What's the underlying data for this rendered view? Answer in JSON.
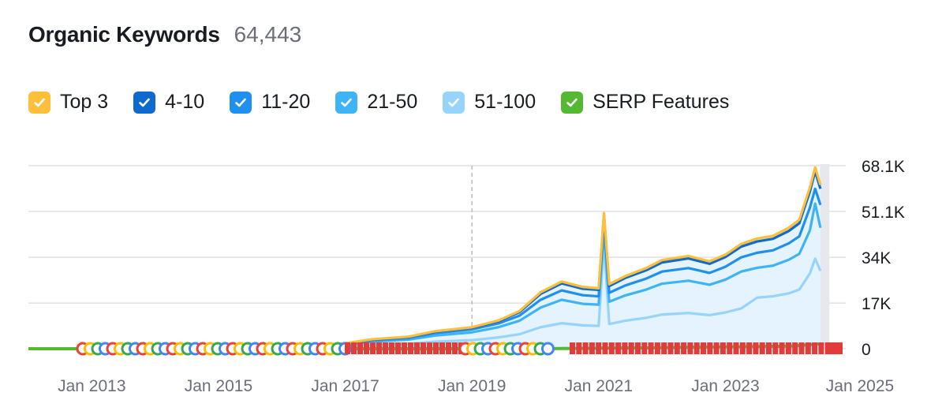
{
  "header": {
    "title": "Organic Keywords",
    "total": "64,443"
  },
  "legend": [
    {
      "label": "Top 3",
      "color": "#ffbf3a"
    },
    {
      "label": "4-10",
      "color": "#0f6ad0"
    },
    {
      "label": "11-20",
      "color": "#1f8ff0"
    },
    {
      "label": "21-50",
      "color": "#3db4f6"
    },
    {
      "label": "51-100",
      "color": "#96d4fb"
    },
    {
      "label": "SERP Features",
      "color": "#55b833"
    }
  ],
  "icons": {
    "check": "check-icon",
    "serp_feature": "google-g-icon",
    "serp_flag": "flag-icon"
  },
  "chart_data": {
    "type": "area",
    "title": "Organic Keywords",
    "x_tick_labels": [
      "Jan 2013",
      "Jan 2015",
      "Jan 2017",
      "Jan 2019",
      "Jan 2021",
      "Jan 2023",
      "Jan 2025"
    ],
    "y_tick_labels": [
      "68.1K",
      "51.1K",
      "34K",
      "17K",
      "0"
    ],
    "ylim": [
      0,
      68100
    ],
    "xlim": [
      "2012-01",
      "2024-10"
    ],
    "grid": true,
    "marker_line": "2019-01",
    "series": [
      {
        "name": "Top 3",
        "color": "#ffbf3a",
        "x": [
          "2012-01",
          "2013-01",
          "2014-01",
          "2015-01",
          "2016-01",
          "2016-06",
          "2017-01",
          "2017-06",
          "2018-01",
          "2018-06",
          "2019-01",
          "2019-06",
          "2019-10",
          "2020-02",
          "2020-06",
          "2020-10",
          "2021-01",
          "2021-02",
          "2021-03",
          "2021-06",
          "2021-10",
          "2022-01",
          "2022-06",
          "2022-10",
          "2023-01",
          "2023-04",
          "2023-07",
          "2023-10",
          "2024-01",
          "2024-03",
          "2024-05",
          "2024-06",
          "2024-07"
        ],
        "values": [
          0,
          0,
          0,
          0,
          100,
          600,
          2000,
          3500,
          4500,
          6500,
          8000,
          10500,
          14000,
          21000,
          25000,
          23000,
          22500,
          50500,
          24000,
          27000,
          30000,
          33000,
          34500,
          32500,
          35000,
          39000,
          41000,
          42000,
          45000,
          48000,
          60000,
          67500,
          61000
        ]
      },
      {
        "name": "4-10",
        "color": "#0f6ad0",
        "x": [
          "2012-01",
          "2013-01",
          "2014-01",
          "2015-01",
          "2016-01",
          "2016-06",
          "2017-01",
          "2017-06",
          "2018-01",
          "2018-06",
          "2019-01",
          "2019-06",
          "2019-10",
          "2020-02",
          "2020-06",
          "2020-10",
          "2021-01",
          "2021-02",
          "2021-03",
          "2021-06",
          "2021-10",
          "2022-01",
          "2022-06",
          "2022-10",
          "2023-01",
          "2023-04",
          "2023-07",
          "2023-10",
          "2024-01",
          "2024-03",
          "2024-05",
          "2024-06",
          "2024-07"
        ],
        "values": [
          0,
          0,
          0,
          0,
          100,
          600,
          2000,
          3400,
          4400,
          6300,
          7800,
          10200,
          13600,
          20400,
          24300,
          22300,
          21900,
          49800,
          23300,
          26300,
          29200,
          32100,
          33600,
          31600,
          34100,
          38000,
          39900,
          40900,
          43800,
          46700,
          58500,
          66000,
          59500
        ]
      },
      {
        "name": "11-20",
        "color": "#1f8ff0",
        "x": [
          "2012-01",
          "2013-01",
          "2014-01",
          "2015-01",
          "2016-01",
          "2016-06",
          "2017-01",
          "2017-06",
          "2018-01",
          "2018-06",
          "2019-01",
          "2019-06",
          "2019-10",
          "2020-02",
          "2020-06",
          "2020-10",
          "2021-01",
          "2021-02",
          "2021-03",
          "2021-06",
          "2021-10",
          "2022-01",
          "2022-06",
          "2022-10",
          "2023-01",
          "2023-04",
          "2023-07",
          "2023-10",
          "2024-01",
          "2024-03",
          "2024-05",
          "2024-06",
          "2024-07"
        ],
        "values": [
          0,
          0,
          0,
          0,
          80,
          500,
          1800,
          3100,
          4000,
          5800,
          7200,
          9400,
          12300,
          18200,
          21700,
          19900,
          19500,
          47500,
          20800,
          23500,
          26100,
          28700,
          30000,
          28200,
          30500,
          34000,
          35700,
          36600,
          39200,
          41800,
          52500,
          59500,
          53500
        ]
      },
      {
        "name": "21-50",
        "color": "#3db4f6",
        "x": [
          "2012-01",
          "2013-01",
          "2014-01",
          "2015-01",
          "2016-01",
          "2016-06",
          "2017-01",
          "2017-06",
          "2018-01",
          "2018-06",
          "2019-01",
          "2019-06",
          "2019-10",
          "2020-02",
          "2020-06",
          "2020-10",
          "2021-01",
          "2021-02",
          "2021-03",
          "2021-06",
          "2021-10",
          "2022-01",
          "2022-06",
          "2022-10",
          "2023-01",
          "2023-04",
          "2023-07",
          "2023-10",
          "2024-01",
          "2024-03",
          "2024-05",
          "2024-06",
          "2024-07"
        ],
        "values": [
          0,
          0,
          0,
          0,
          60,
          400,
          1500,
          2600,
          3400,
          4900,
          6100,
          8000,
          10400,
          15300,
          18200,
          16700,
          16400,
          44000,
          17500,
          19800,
          22000,
          24200,
          25300,
          23800,
          25700,
          28700,
          30100,
          30900,
          33100,
          35300,
          44000,
          54000,
          45000
        ]
      },
      {
        "name": "51-100",
        "color": "#96d4fb",
        "x": [
          "2012-01",
          "2013-01",
          "2014-01",
          "2015-01",
          "2016-01",
          "2016-06",
          "2017-01",
          "2017-06",
          "2018-01",
          "2018-06",
          "2019-01",
          "2019-06",
          "2019-10",
          "2020-02",
          "2020-06",
          "2020-10",
          "2021-01",
          "2021-02",
          "2021-03",
          "2021-06",
          "2021-10",
          "2022-01",
          "2022-06",
          "2022-10",
          "2023-01",
          "2023-04",
          "2023-07",
          "2023-10",
          "2024-01",
          "2024-03",
          "2024-05",
          "2024-06",
          "2024-07"
        ],
        "values": [
          0,
          0,
          0,
          0,
          30,
          200,
          800,
          1400,
          1800,
          2600,
          3200,
          4200,
          5400,
          8000,
          9500,
          8700,
          8500,
          39000,
          9200,
          10400,
          11500,
          12700,
          13300,
          12500,
          13500,
          15000,
          19000,
          19500,
          20600,
          22000,
          28000,
          33500,
          29000
        ]
      },
      {
        "name": "SERP Features",
        "color": "#55b833",
        "x": [
          "2012-01",
          "2013-01",
          "2014-01",
          "2015-01",
          "2016-01",
          "2017-01",
          "2018-01",
          "2019-01",
          "2020-01",
          "2021-01",
          "2022-01",
          "2023-01",
          "2024-01",
          "2024-05",
          "2024-07"
        ],
        "values": [
          0,
          0,
          0,
          0,
          0,
          0,
          0,
          0,
          0,
          200,
          400,
          700,
          900,
          1500,
          1800
        ]
      }
    ]
  }
}
